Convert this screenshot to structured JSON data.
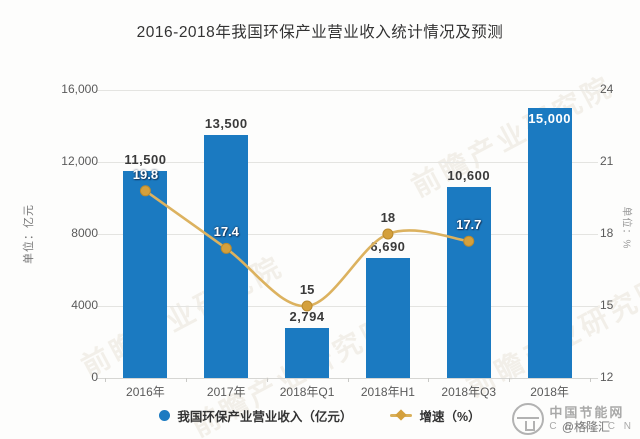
{
  "title": "2016-2018年我国环保产业营业收入统计情况及预测",
  "chart_data": {
    "type": "bar",
    "categories": [
      "2016年",
      "2017年",
      "2018年Q1",
      "2018年H1",
      "2018年Q3",
      "2018年"
    ],
    "series": [
      {
        "name": "我国环保产业营业收入（亿元）",
        "type": "bar",
        "axis": "left",
        "color": "#1b7ac1",
        "values": [
          11500,
          13500,
          2794,
          6690,
          10600,
          15000
        ],
        "labels": [
          "11,500",
          "13,500",
          "2,794",
          "6,690",
          "10,600",
          "15,000"
        ]
      },
      {
        "name": "增速（%）",
        "type": "line",
        "axis": "right",
        "color": "#dcb25f",
        "marker_color": "#d4a03c",
        "values": [
          19.8,
          17.4,
          15,
          18,
          17.7
        ],
        "labels": [
          "19.8",
          "17.4",
          "15",
          "18",
          "17.7"
        ]
      }
    ],
    "left_axis": {
      "title": "单位：亿元",
      "min": 0,
      "max": 16000,
      "ticks": [
        "16,000",
        "12,000",
        "8000",
        "4000",
        "0"
      ]
    },
    "right_axis": {
      "title": "单位：%",
      "min": 12,
      "max": 24,
      "ticks": [
        "24",
        "21",
        "18",
        "15",
        "12"
      ]
    },
    "grid": true,
    "legend_position": "bottom",
    "legend": [
      {
        "label": "我国环保产业营业收入（亿元）",
        "swatch": "circle",
        "color": "#1b7ac1"
      },
      {
        "label": "增速（%）",
        "swatch": "diamond-line",
        "color": "#d4a03c"
      }
    ]
  },
  "watermarks": {
    "diagonal_text": "前瞻产业研究院",
    "logo_title": "中国节能网",
    "logo_sub": "C E S . C N",
    "byline": "@格隆汇"
  }
}
